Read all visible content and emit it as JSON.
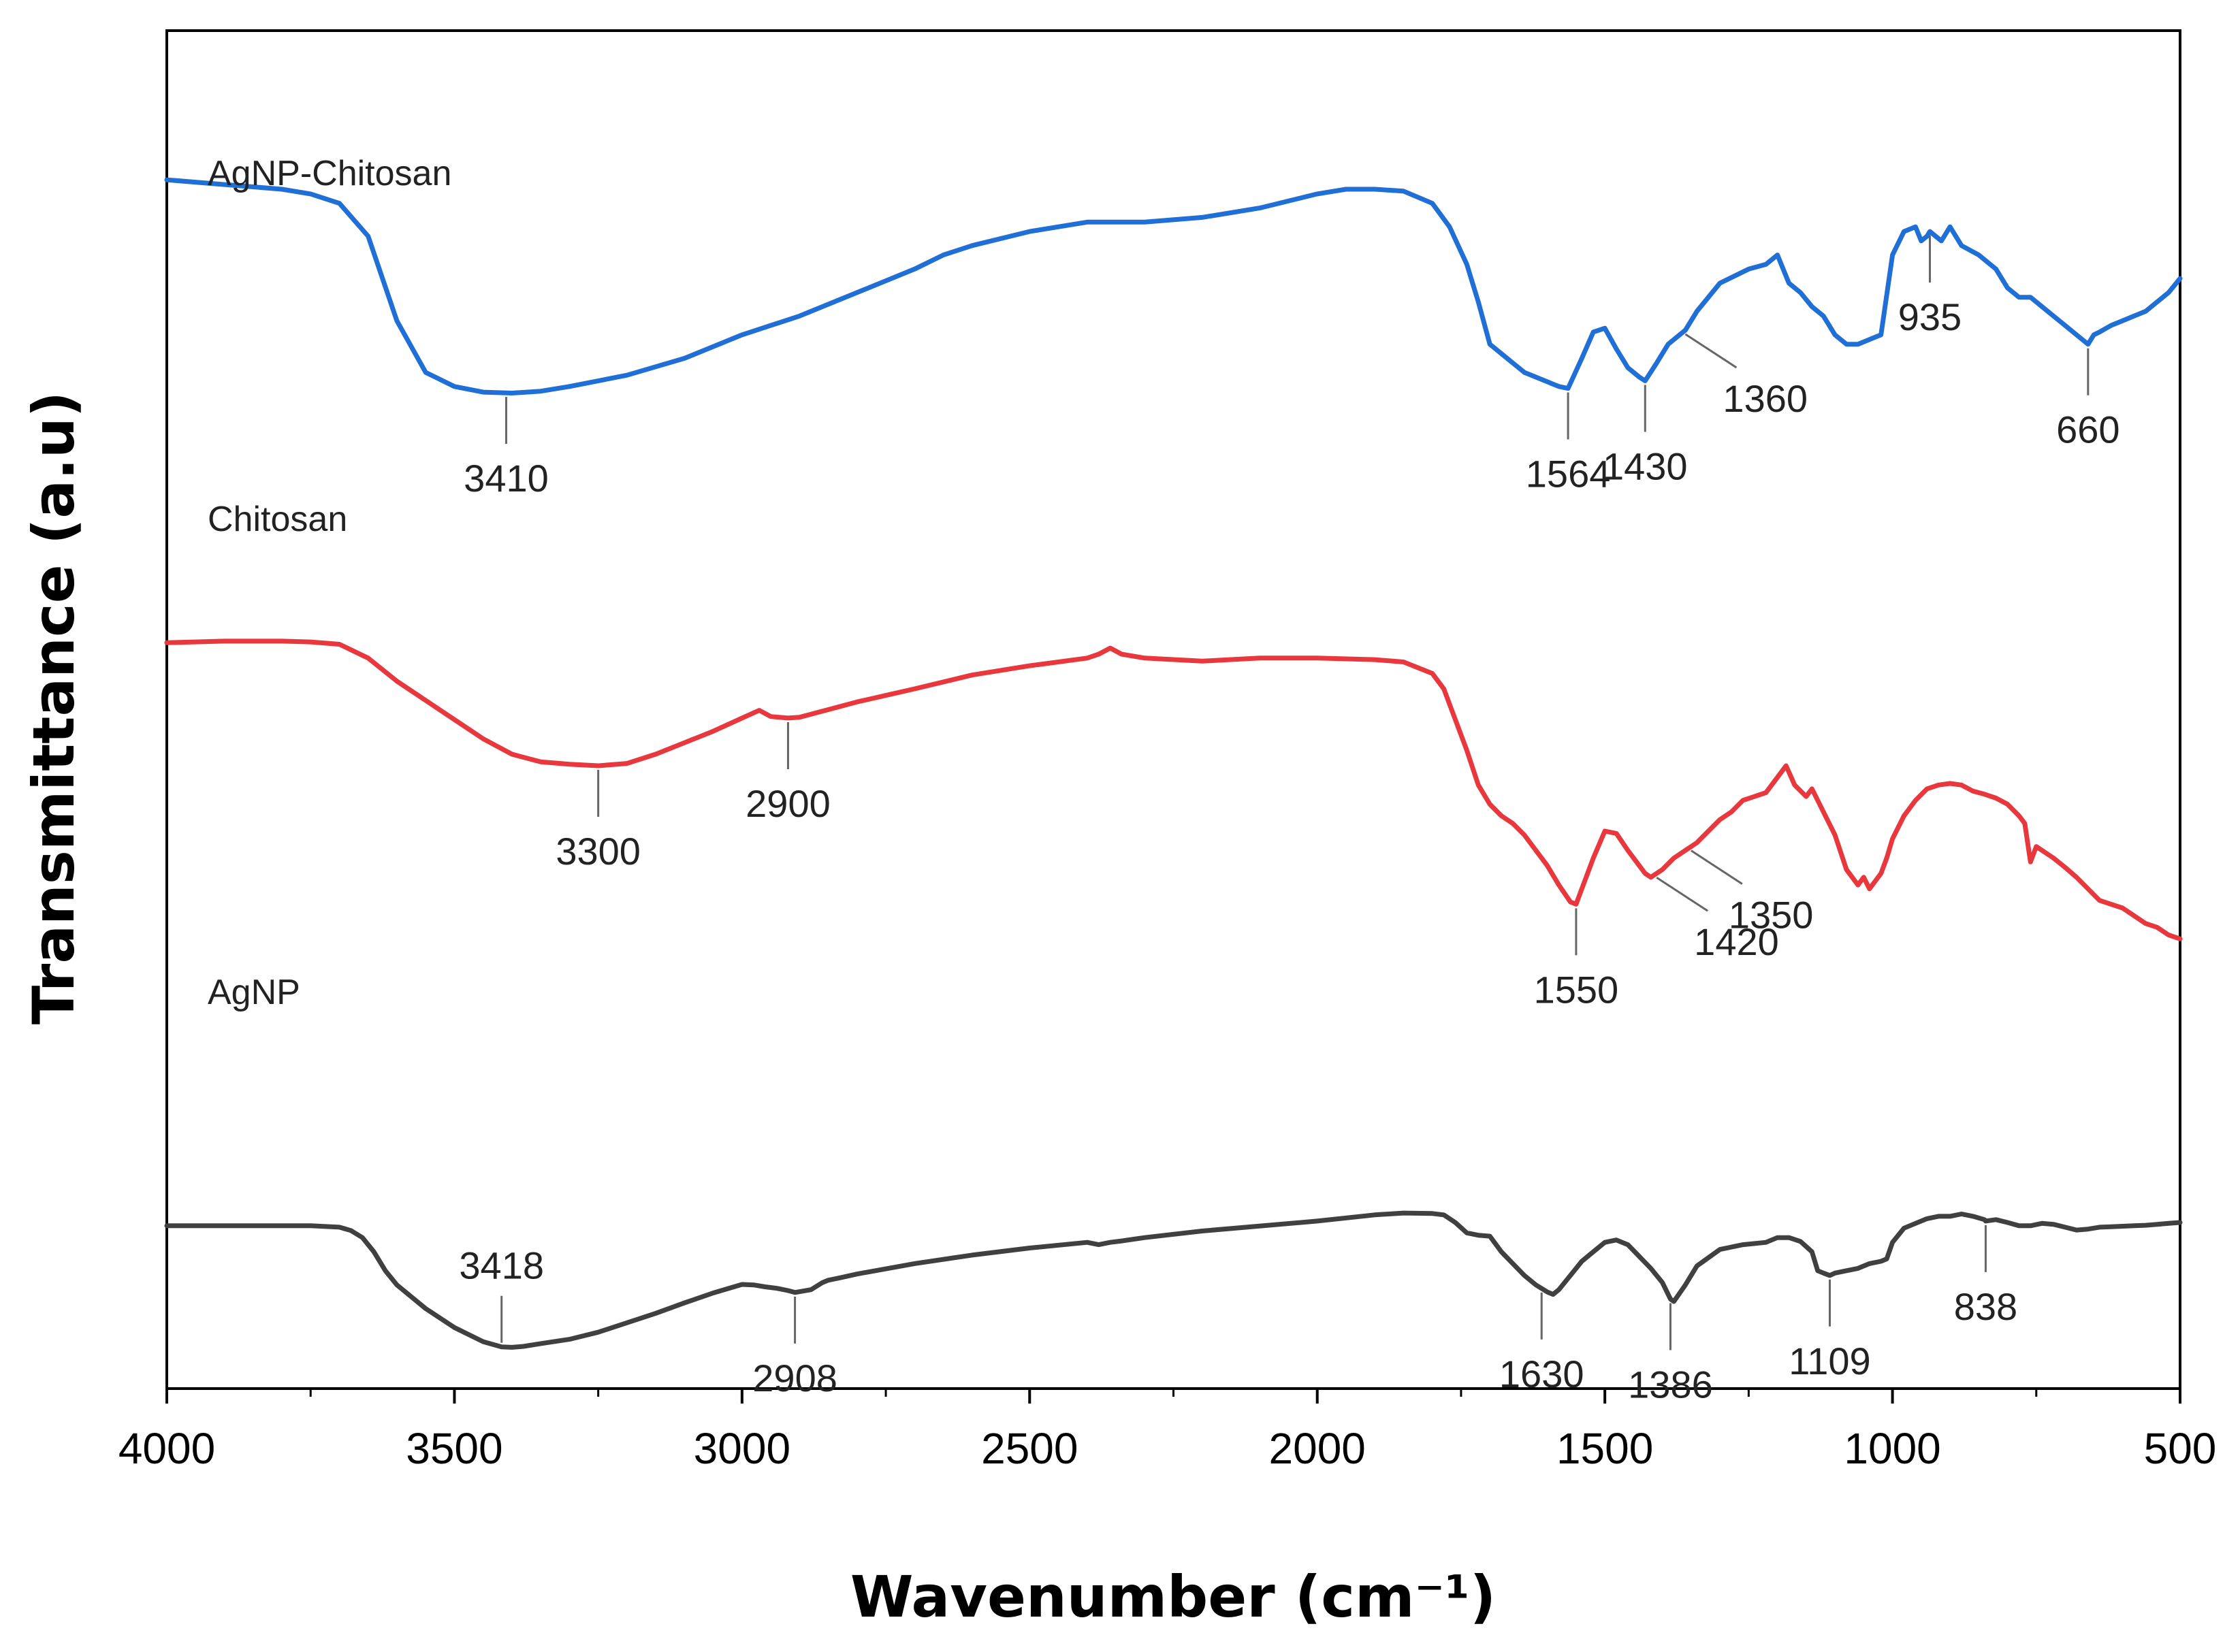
{
  "chart_data": {
    "type": "line",
    "title": "",
    "xlabel": "Wavenumber (cm⁻¹)",
    "ylabel": "Transmittance (a.u)",
    "xlim": [
      4000,
      500
    ],
    "ylim": [
      0,
      100
    ],
    "x_reversed": true,
    "grid": false,
    "y_ticks_shown": false,
    "x_ticks": [
      4000,
      3500,
      3000,
      2500,
      2000,
      1500,
      1000,
      500
    ],
    "x_tick_labels": [
      "4000",
      "3500",
      "3000",
      "2500",
      "2000",
      "1500",
      "1000",
      "500"
    ],
    "series": [
      {
        "name": "AgNP-Chitosan",
        "color": "#1f6fd6",
        "x": [
          4000,
          3900,
          3800,
          3750,
          3700,
          3650,
          3600,
          3550,
          3500,
          3450,
          3400,
          3350,
          3300,
          3200,
          3100,
          3000,
          2950,
          2900,
          2800,
          2700,
          2650,
          2600,
          2500,
          2400,
          2350,
          2300,
          2200,
          2100,
          2000,
          1950,
          1900,
          1850,
          1800,
          1770,
          1740,
          1720,
          1700,
          1680,
          1660,
          1640,
          1620,
          1600,
          1580,
          1564,
          1540,
          1520,
          1500,
          1480,
          1460,
          1440,
          1430,
          1410,
          1390,
          1360,
          1340,
          1300,
          1250,
          1220,
          1200,
          1180,
          1160,
          1140,
          1120,
          1100,
          1080,
          1060,
          1040,
          1020,
          1000,
          980,
          960,
          950,
          940,
          935,
          925,
          915,
          900,
          880,
          850,
          820,
          800,
          780,
          760,
          740,
          720,
          700,
          680,
          660,
          650,
          640,
          620,
          600,
          580,
          560,
          540,
          520,
          500
        ],
        "values": [
          91,
          90.5,
          90,
          89.5,
          88.5,
          85,
          76,
          70.5,
          69,
          68.4,
          68.3,
          68.5,
          69,
          70.2,
          72,
          74.5,
          75.5,
          76.5,
          79,
          81.5,
          83,
          84,
          85.5,
          86.5,
          86.5,
          86.5,
          87,
          88,
          89.5,
          90,
          90,
          89.8,
          88.5,
          86,
          82,
          78,
          73.5,
          72.5,
          71.5,
          70.5,
          70,
          69.5,
          69,
          68.8,
          72,
          74.8,
          75.2,
          73,
          71,
          70,
          69.6,
          71.5,
          73.5,
          75,
          77,
          80,
          81.5,
          82,
          83,
          80,
          79,
          77.5,
          76.5,
          74.5,
          73.5,
          73.5,
          74,
          74.5,
          83,
          85.5,
          86,
          84.5,
          85,
          85.5,
          85,
          84.5,
          86,
          84,
          83,
          81.5,
          79.5,
          78.5,
          78.5,
          77.5,
          76.5,
          75.5,
          74.5,
          73.5,
          74.5,
          74.8,
          75.5,
          76,
          76.5,
          77,
          78,
          79,
          80.5
        ]
      },
      {
        "name": "Chitosan",
        "color": "#e8383d",
        "x": [
          4000,
          3900,
          3800,
          3750,
          3700,
          3650,
          3600,
          3550,
          3500,
          3450,
          3400,
          3350,
          3300,
          3250,
          3200,
          3150,
          3100,
          3050,
          3000,
          2970,
          2950,
          2920,
          2900,
          2850,
          2800,
          2700,
          2600,
          2500,
          2400,
          2380,
          2360,
          2340,
          2300,
          2200,
          2100,
          2000,
          1900,
          1850,
          1800,
          1780,
          1760,
          1740,
          1720,
          1700,
          1680,
          1660,
          1640,
          1620,
          1600,
          1580,
          1560,
          1550,
          1540,
          1520,
          1500,
          1480,
          1460,
          1440,
          1430,
          1420,
          1400,
          1380,
          1360,
          1350,
          1340,
          1320,
          1300,
          1280,
          1260,
          1240,
          1220,
          1200,
          1185,
          1170,
          1150,
          1140,
          1120,
          1100,
          1080,
          1060,
          1050,
          1040,
          1020,
          1010,
          1000,
          980,
          960,
          940,
          920,
          900,
          880,
          860,
          840,
          820,
          800,
          780,
          770,
          760,
          750,
          740,
          720,
          700,
          680,
          660,
          640,
          620,
          600,
          580,
          560,
          540,
          520,
          500
        ],
        "values": [
          66,
          66.2,
          66.2,
          66.1,
          65.8,
          64,
          61,
          58.5,
          56,
          53.5,
          51.5,
          50.5,
          50.2,
          50,
          50.3,
          51.5,
          53,
          54.5,
          56.2,
          57.2,
          56.4,
          56.2,
          56.3,
          57.3,
          58.3,
          60,
          61.8,
          63,
          64,
          64.5,
          65.3,
          64.5,
          64,
          63.6,
          64,
          64,
          63.8,
          63.5,
          62,
          60,
          56,
          52,
          47.5,
          45,
          43.5,
          42.5,
          41,
          39,
          37,
          34.5,
          32.3,
          32,
          34,
          38,
          41.5,
          41.2,
          39,
          37,
          36,
          35.5,
          36.5,
          38,
          39,
          39.5,
          40,
          41.5,
          43,
          44,
          45.5,
          46,
          46.5,
          48.5,
          50,
          47.5,
          46,
          47,
          44,
          41,
          36.5,
          34.5,
          35.5,
          34,
          36,
          38,
          40.5,
          43.5,
          45.5,
          47,
          47.5,
          47.7,
          47.5,
          46.7,
          46.3,
          45.8,
          45,
          43.5,
          42.5,
          37.5,
          39.5,
          39,
          38,
          36.8,
          35.5,
          34,
          32.5,
          32,
          31.5,
          30.5,
          29.5,
          29,
          28,
          27.5
        ]
      },
      {
        "name": "AgNP",
        "color": "#404040",
        "x": [
          4000,
          3900,
          3800,
          3750,
          3700,
          3680,
          3660,
          3640,
          3620,
          3600,
          3550,
          3500,
          3450,
          3418,
          3400,
          3380,
          3350,
          3300,
          3250,
          3200,
          3150,
          3100,
          3050,
          3000,
          2980,
          2960,
          2940,
          2920,
          2908,
          2880,
          2860,
          2850,
          2830,
          2800,
          2700,
          2600,
          2500,
          2400,
          2380,
          2360,
          2340,
          2300,
          2200,
          2000,
          1900,
          1850,
          1800,
          1780,
          1760,
          1740,
          1720,
          1700,
          1680,
          1660,
          1640,
          1620,
          1600,
          1590,
          1580,
          1560,
          1540,
          1520,
          1500,
          1480,
          1460,
          1440,
          1420,
          1400,
          1386,
          1380,
          1360,
          1340,
          1300,
          1260,
          1220,
          1200,
          1180,
          1160,
          1140,
          1130,
          1120,
          1109,
          1100,
          1080,
          1060,
          1040,
          1020,
          1010,
          1000,
          980,
          960,
          940,
          920,
          900,
          880,
          860,
          840,
          838,
          820,
          800,
          780,
          760,
          740,
          720,
          700,
          680,
          660,
          640,
          620,
          600,
          580,
          560,
          540,
          520,
          500
        ],
        "values": [
          26.5,
          26.5,
          26.5,
          26.5,
          26.2,
          25.5,
          24,
          21,
          17,
          14,
          9,
          5,
          2,
          0.9,
          0.8,
          1,
          1.6,
          2.5,
          4,
          6,
          8,
          10.2,
          12.3,
          14.1,
          14,
          13.6,
          13.3,
          12.8,
          12.4,
          13,
          14.5,
          15,
          15.5,
          16.3,
          18.5,
          20.3,
          21.8,
          23,
          22.5,
          23,
          23.3,
          24,
          25.4,
          27.5,
          28.8,
          29.2,
          29.1,
          28.8,
          27.2,
          25,
          24.5,
          24.3,
          21,
          18.5,
          16,
          14,
          12.5,
          12,
          13,
          16,
          19,
          21,
          23,
          23.5,
          22.5,
          20,
          17.5,
          14.5,
          11,
          10.5,
          14,
          18,
          21.5,
          22.5,
          23,
          24,
          24,
          23.2,
          21,
          17,
          16.5,
          16,
          16.5,
          17,
          17.5,
          18.5,
          19,
          19.5,
          23,
          26,
          27,
          28,
          28.5,
          28.5,
          29,
          28.5,
          27.8,
          27.5,
          27.8,
          27.2,
          26.5,
          26.5,
          27,
          26.8,
          26.2,
          25.6,
          25.8,
          26.2,
          26.3,
          26.4,
          26.5,
          26.6,
          26.8,
          27,
          27.2
        ]
      }
    ],
    "series_labels": [
      {
        "text": "AgNP-Chitosan",
        "series": "AgNP-Chitosan"
      },
      {
        "text": "Chitosan",
        "series": "Chitosan"
      },
      {
        "text": "AgNP",
        "series": "AgNP"
      }
    ],
    "annotations": [
      {
        "series": "AgNP-Chitosan",
        "label": "3410",
        "x": 3410,
        "style": "below"
      },
      {
        "series": "AgNP-Chitosan",
        "label": "1564",
        "x": 1564,
        "style": "below"
      },
      {
        "series": "AgNP-Chitosan",
        "label": "1430",
        "x": 1430,
        "style": "below"
      },
      {
        "series": "AgNP-Chitosan",
        "label": "1360",
        "x": 1360,
        "style": "diagonal"
      },
      {
        "series": "AgNP-Chitosan",
        "label": "935",
        "x": 935,
        "style": "below"
      },
      {
        "series": "AgNP-Chitosan",
        "label": "660",
        "x": 660,
        "style": "below"
      },
      {
        "series": "Chitosan",
        "label": "3300",
        "x": 3250,
        "style": "below"
      },
      {
        "series": "Chitosan",
        "label": "2900",
        "x": 2920,
        "style": "below"
      },
      {
        "series": "Chitosan",
        "label": "1550",
        "x": 1550,
        "style": "below"
      },
      {
        "series": "Chitosan",
        "label": "1420",
        "x": 1410,
        "style": "diagonal"
      },
      {
        "series": "Chitosan",
        "label": "1350",
        "x": 1350,
        "style": "diagonal"
      },
      {
        "series": "AgNP",
        "label": "3418",
        "x": 3418,
        "style": "above"
      },
      {
        "series": "AgNP",
        "label": "2908",
        "x": 2908,
        "style": "below"
      },
      {
        "series": "AgNP",
        "label": "1630",
        "x": 1610,
        "style": "below"
      },
      {
        "series": "AgNP",
        "label": "1386",
        "x": 1386,
        "style": "below"
      },
      {
        "series": "AgNP",
        "label": "1109",
        "x": 1109,
        "style": "below"
      },
      {
        "series": "AgNP",
        "label": "838",
        "x": 838,
        "style": "below"
      }
    ]
  }
}
